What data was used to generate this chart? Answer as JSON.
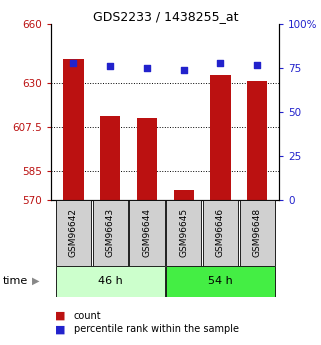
{
  "title": "GDS2233 / 1438255_at",
  "samples": [
    "GSM96642",
    "GSM96643",
    "GSM96644",
    "GSM96645",
    "GSM96646",
    "GSM96648"
  ],
  "count_values": [
    642,
    613,
    612,
    575,
    634,
    631
  ],
  "percentile_values": [
    78,
    76,
    75,
    74,
    78,
    77
  ],
  "ylim_left": [
    570,
    660
  ],
  "ylim_right": [
    0,
    100
  ],
  "yticks_left": [
    570,
    585,
    607.5,
    630,
    660
  ],
  "yticks_right": [
    0,
    25,
    50,
    75,
    100
  ],
  "ytick_labels_left": [
    "570",
    "585",
    "607.5",
    "630",
    "660"
  ],
  "ytick_labels_right": [
    "0",
    "25",
    "50",
    "75",
    "100%"
  ],
  "bar_color": "#bb1111",
  "dot_color": "#2222cc",
  "group1_label": "46 h",
  "group2_label": "54 h",
  "group1_color": "#ccffcc",
  "group2_color": "#44ee44",
  "group1_indices": [
    0,
    1,
    2
  ],
  "group2_indices": [
    3,
    4,
    5
  ],
  "legend_count_label": "count",
  "legend_pct_label": "percentile rank within the sample",
  "time_label": "time",
  "background_color": "#ffffff",
  "tick_label_box_color": "#d0d0d0",
  "bar_width": 0.55,
  "base_value": 570
}
